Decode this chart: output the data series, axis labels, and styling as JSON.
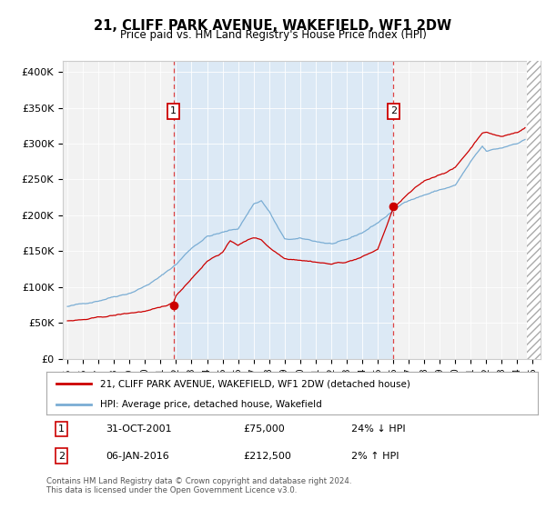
{
  "title": "21, CLIFF PARK AVENUE, WAKEFIELD, WF1 2DW",
  "subtitle": "Price paid vs. HM Land Registry's House Price Index (HPI)",
  "background_color": "#ffffff",
  "plot_bg_color": "#f0f0f0",
  "shaded_region_color": "#dce9f5",
  "ytick_labels": [
    "£0",
    "£50K",
    "£100K",
    "£150K",
    "£200K",
    "£250K",
    "£300K",
    "£350K",
    "£400K"
  ],
  "yticks": [
    0,
    50000,
    100000,
    150000,
    200000,
    250000,
    300000,
    350000,
    400000
  ],
  "xlim_start": 1994.7,
  "xlim_end": 2025.5,
  "ylim_min": 0,
  "ylim_max": 415000,
  "transaction1_x": 2001.83,
  "transaction1_y": 75000,
  "transaction1_label": "1",
  "transaction2_x": 2016.02,
  "transaction2_y": 212500,
  "transaction2_label": "2",
  "legend_line1": "21, CLIFF PARK AVENUE, WAKEFIELD, WF1 2DW (detached house)",
  "legend_line2": "HPI: Average price, detached house, Wakefield",
  "footer_line1": "Contains HM Land Registry data © Crown copyright and database right 2024.",
  "footer_line2": "This data is licensed under the Open Government Licence v3.0.",
  "table_row1_num": "1",
  "table_row1_date": "31-OCT-2001",
  "table_row1_price": "£75,000",
  "table_row1_hpi": "24% ↓ HPI",
  "table_row2_num": "2",
  "table_row2_date": "06-JAN-2016",
  "table_row2_price": "£212,500",
  "table_row2_hpi": "2% ↑ HPI",
  "red_line_color": "#cc0000",
  "blue_line_color": "#7aadd4",
  "dashed_line_color": "#dd4444",
  "box_color": "#cc0000"
}
